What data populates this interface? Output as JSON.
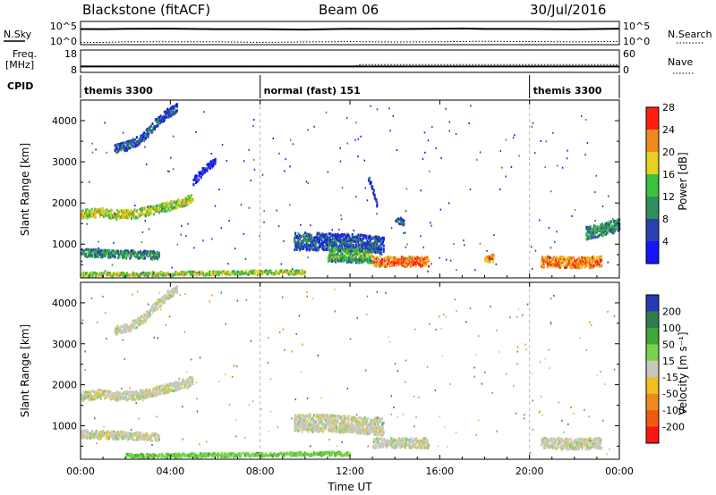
{
  "header": {
    "title": "Blackstone (fitACF)",
    "beam": "Beam 06",
    "date": "30/Jul/2016"
  },
  "top_panels": {
    "nsky_label": "N.Sky",
    "nsearch_label": "N.Search",
    "freq_label_line1": "Freq.",
    "freq_label_line2": "[MHz]",
    "nave_label": "Nave",
    "cpid_label": "CPID",
    "noise_ticks": [
      "10^5",
      "10^0"
    ],
    "freq_ticks": [
      "18",
      "8"
    ],
    "nave_ticks": [
      "60",
      "0"
    ]
  },
  "cpid_segments": [
    {
      "label": "themis 3300",
      "start_hour": 0
    },
    {
      "label": "normal (fast) 151",
      "start_hour": 8
    },
    {
      "label": "themis 3300",
      "start_hour": 20
    }
  ],
  "axes": {
    "x_label": "Time UT",
    "x_ticks": [
      "00:00",
      "04:00",
      "08:00",
      "12:00",
      "16:00",
      "20:00",
      "00:00"
    ],
    "y_label": "Slant Range [km]",
    "y_ticks": [
      "1000",
      "2000",
      "3000",
      "4000"
    ]
  },
  "colorbars": {
    "power": {
      "label": "Power [dB]",
      "ticks": [
        "4",
        "8",
        "12",
        "16",
        "20",
        "24",
        "28"
      ],
      "colors": [
        "#1414ff",
        "#2a3fb0",
        "#2f8f5a",
        "#3cc040",
        "#e6d21e",
        "#f08a1e",
        "#ff2010"
      ]
    },
    "velocity": {
      "label": "Velocity [m s⁻¹]",
      "ticks": [
        "200",
        "100",
        "50",
        "15",
        "-15",
        "-50",
        "-100",
        "-200"
      ],
      "colors": [
        "#2838b8",
        "#2f7d4a",
        "#3da83a",
        "#7ad34a",
        "#c8c8c0",
        "#f0c020",
        "#f08a20",
        "#f05a10",
        "#ff1414"
      ]
    }
  },
  "chart_data": [
    {
      "type": "line",
      "title": "",
      "ylabel": "N.Sky / N.Search",
      "y_scale": "log",
      "ylim": [
        1,
        100000
      ],
      "x": [
        0,
        1,
        2,
        4,
        6,
        8,
        10,
        12,
        14,
        16,
        17,
        18,
        20,
        22,
        24
      ],
      "series": [
        {
          "values": [
            3000,
            3500,
            3500,
            3200,
            2800,
            2800,
            3000,
            3200,
            3000,
            3500,
            4000,
            3800,
            3000,
            3500,
            4000
          ]
        },
        {
          "values": [
            1.5,
            1.6,
            1.6,
            1.5,
            1.6,
            1.7,
            1.8,
            1.8,
            1.8,
            2.2,
            2.5,
            2.0,
            1.8,
            1.9,
            2.4
          ]
        }
      ]
    },
    {
      "type": "line",
      "title": "",
      "ylabel": "Freq. [MHz] / Nave",
      "ylim": [
        8,
        18
      ],
      "x": [
        0,
        8,
        8.5,
        12,
        12.5,
        24
      ],
      "series": [
        {
          "values": [
            10.2,
            10.2,
            10.2,
            10.2,
            10.2,
            10.2
          ]
        },
        {
          "values": [
            10,
            10,
            10,
            10,
            11.2,
            11.2
          ]
        }
      ]
    },
    {
      "type": "heatmap",
      "title": "",
      "xlabel": "Time UT",
      "ylabel": "Slant Range [km]",
      "quantity": "Power [dB]",
      "xlim": [
        0,
        24
      ],
      "ylim": [
        180,
        4500
      ],
      "clim": [
        2,
        30
      ],
      "regions": [
        {
          "t": [
            0.0,
            0.8,
            1.5,
            2.5,
            3.5,
            4.5,
            5.0
          ],
          "range": [
            1700,
            1760,
            1700,
            1730,
            1850,
            2000,
            2100
          ],
          "width": 180,
          "value": 20
        },
        {
          "t": [
            0.0,
            1.0,
            2.0,
            3.0,
            3.5
          ],
          "range": [
            780,
            760,
            740,
            720,
            700
          ],
          "width": 160,
          "value": 14
        },
        {
          "t": [
            1.5,
            2.2,
            2.8,
            3.3,
            3.8,
            4.3
          ],
          "range": [
            3300,
            3400,
            3600,
            3900,
            4150,
            4300
          ],
          "width": 180,
          "value": 10
        },
        {
          "t": [
            5.0,
            5.5,
            6.0
          ],
          "range": [
            2500,
            2800,
            3000
          ],
          "width": 150,
          "value": 6
        },
        {
          "t": [
            9.5,
            11.0,
            12.5,
            13.5
          ],
          "range": [
            1050,
            1050,
            1000,
            950
          ],
          "width": 350,
          "value": 10
        },
        {
          "t": [
            11.0,
            12.0,
            13.0
          ],
          "range": [
            750,
            720,
            700
          ],
          "width": 300,
          "value": 16
        },
        {
          "t": [
            13.0,
            14.0,
            15.0,
            15.5
          ],
          "range": [
            560,
            560,
            560,
            560
          ],
          "width": 200,
          "value": 26
        },
        {
          "t": [
            18.0,
            18.4
          ],
          "range": [
            640,
            640
          ],
          "width": 150,
          "value": 24
        },
        {
          "t": [
            20.5,
            21.5,
            22.5,
            23.2
          ],
          "range": [
            560,
            540,
            540,
            560
          ],
          "width": 220,
          "value": 26
        },
        {
          "t": [
            22.5,
            23.3,
            24.0
          ],
          "range": [
            1250,
            1350,
            1450
          ],
          "width": 250,
          "value": 14
        },
        {
          "t": [
            0.0,
            3.0,
            6.0,
            8.0,
            10.0
          ],
          "range": [
            250,
            260,
            280,
            300,
            300
          ],
          "width": 80,
          "value": 20
        },
        {
          "t": [
            12.8,
            13.0,
            13.2
          ],
          "range": [
            2600,
            2300,
            1900
          ],
          "width": 120,
          "value": 8
        },
        {
          "t": [
            14.0,
            14.4
          ],
          "range": [
            1600,
            1500
          ],
          "width": 140,
          "value": 12
        }
      ]
    },
    {
      "type": "heatmap",
      "title": "",
      "xlabel": "Time UT",
      "ylabel": "Slant Range [km]",
      "quantity": "Velocity [m s⁻¹]",
      "xlim": [
        0,
        24
      ],
      "ylim": [
        180,
        4500
      ],
      "clim": [
        -200,
        200
      ],
      "regions": [
        {
          "t": [
            0.0,
            0.8,
            1.5,
            2.5,
            3.5,
            4.5,
            5.0
          ],
          "range": [
            1700,
            1760,
            1700,
            1730,
            1850,
            2000,
            2100
          ],
          "width": 180,
          "value": 0
        },
        {
          "t": [
            0.0,
            1.0,
            2.0,
            3.0,
            3.5
          ],
          "range": [
            780,
            760,
            740,
            720,
            700
          ],
          "width": 160,
          "value": 0
        },
        {
          "t": [
            1.5,
            2.2,
            2.8,
            3.3,
            3.8,
            4.3
          ],
          "range": [
            3300,
            3400,
            3600,
            3900,
            4150,
            4300
          ],
          "width": 180,
          "value": 0
        },
        {
          "t": [
            9.5,
            11.0,
            12.5,
            13.5
          ],
          "range": [
            1050,
            1050,
            1000,
            950
          ],
          "width": 350,
          "value": 0
        },
        {
          "t": [
            13.0,
            14.0,
            15.0,
            15.5
          ],
          "range": [
            560,
            560,
            560,
            560
          ],
          "width": 200,
          "value": 0
        },
        {
          "t": [
            20.5,
            21.5,
            22.5,
            23.2
          ],
          "range": [
            560,
            540,
            540,
            560
          ],
          "width": 220,
          "value": 0
        },
        {
          "t": [
            2.0,
            5.0,
            8.0,
            10.0,
            12.0
          ],
          "range": [
            250,
            260,
            280,
            300,
            300
          ],
          "width": 80,
          "value": 40
        }
      ]
    }
  ]
}
